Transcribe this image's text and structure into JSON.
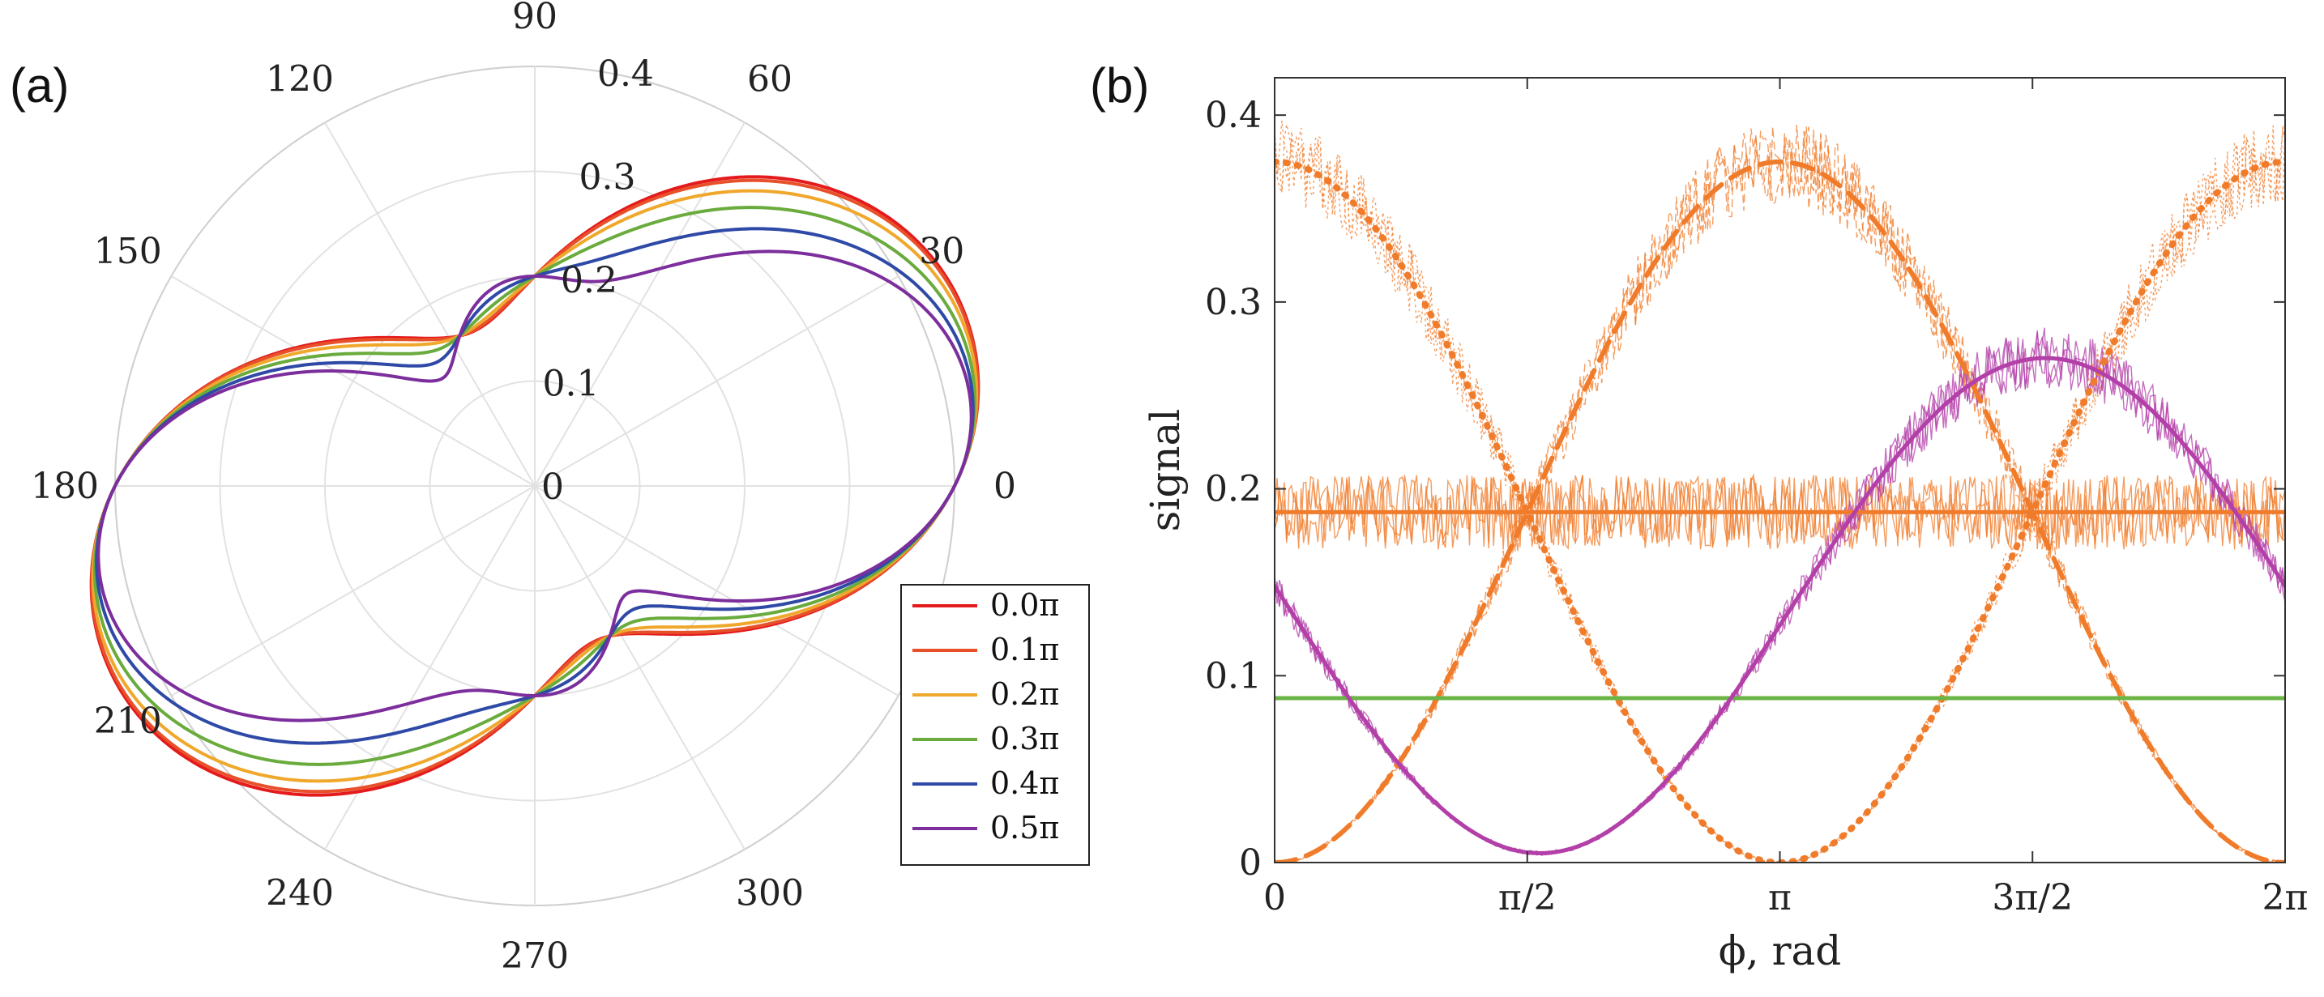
{
  "panels": {
    "a_label": "(a)",
    "b_label": "(b)"
  },
  "chart_data": [
    {
      "type": "line",
      "subtype": "polar",
      "title": "",
      "theta_ticks_deg": [
        0,
        30,
        60,
        90,
        120,
        150,
        180,
        210,
        240,
        270,
        300
      ],
      "theta_tick_labels": [
        "0",
        "30",
        "60",
        "90",
        "120",
        "150",
        "180",
        "210",
        "240",
        "270",
        "300"
      ],
      "r_ticks": [
        0,
        0.1,
        0.2,
        0.3,
        0.4
      ],
      "r_tick_labels": [
        "0",
        "0.1",
        "0.2",
        "0.3",
        "0.4"
      ],
      "rlim": [
        0,
        0.4
      ],
      "grid": true,
      "legend_position": "bottom-right",
      "model": "r(theta) = |0.4*cos^2(theta) + 0.2*sin^2(theta)*e^{i*psi} + 0.1*sin(2*theta)|, psi = series delay",
      "series": [
        {
          "name": "0.0π",
          "psi_pi": 0.0,
          "color": "#e41a1c"
        },
        {
          "name": "0.1π",
          "psi_pi": 0.1,
          "color": "#e8502a"
        },
        {
          "name": "0.2π",
          "psi_pi": 0.2,
          "color": "#f0a82c"
        },
        {
          "name": "0.3π",
          "psi_pi": 0.3,
          "color": "#6aab3d"
        },
        {
          "name": "0.4π",
          "psi_pi": 0.4,
          "color": "#2f49a7"
        },
        {
          "name": "0.5π",
          "psi_pi": 0.5,
          "color": "#7c2e9c"
        }
      ]
    },
    {
      "type": "line",
      "title": "",
      "xlabel": "ϕ, rad",
      "ylabel": "signal",
      "xlim": [
        0,
        6.2832
      ],
      "ylim": [
        0,
        0.42
      ],
      "x_ticks": [
        0,
        1.5708,
        3.1416,
        4.7124,
        6.2832
      ],
      "x_tick_labels": [
        "0",
        "π/2",
        "π",
        "3π/2",
        "2π"
      ],
      "y_ticks": [
        0,
        0.1,
        0.2,
        0.3,
        0.4
      ],
      "y_tick_labels": [
        "0",
        "0.1",
        "0.2",
        "0.3",
        "0.4"
      ],
      "grid": false,
      "series": [
        {
          "id": "orange-dotted",
          "style": "dotted",
          "color": "#f07c2b",
          "formula": "0.375*cos^2(phi/2)",
          "noisy_traces": true
        },
        {
          "id": "orange-dashed",
          "style": "dashed",
          "color": "#f07c2b",
          "formula": "0.375*sin^2(phi/2)",
          "noisy_traces": true
        },
        {
          "id": "orange-solid",
          "style": "solid",
          "color": "#f07c2b",
          "constant": 0.1875,
          "noisy_traces": true
        },
        {
          "id": "green-solid",
          "style": "solid",
          "color": "#6ab545",
          "constant": 0.088,
          "noisy_traces": false
        },
        {
          "id": "magenta-solid",
          "style": "solid",
          "color": "#b33fa8",
          "formula": "0.1375 - 0.1325*cos(phi - 1.65)",
          "noisy_traces": true
        }
      ]
    }
  ]
}
